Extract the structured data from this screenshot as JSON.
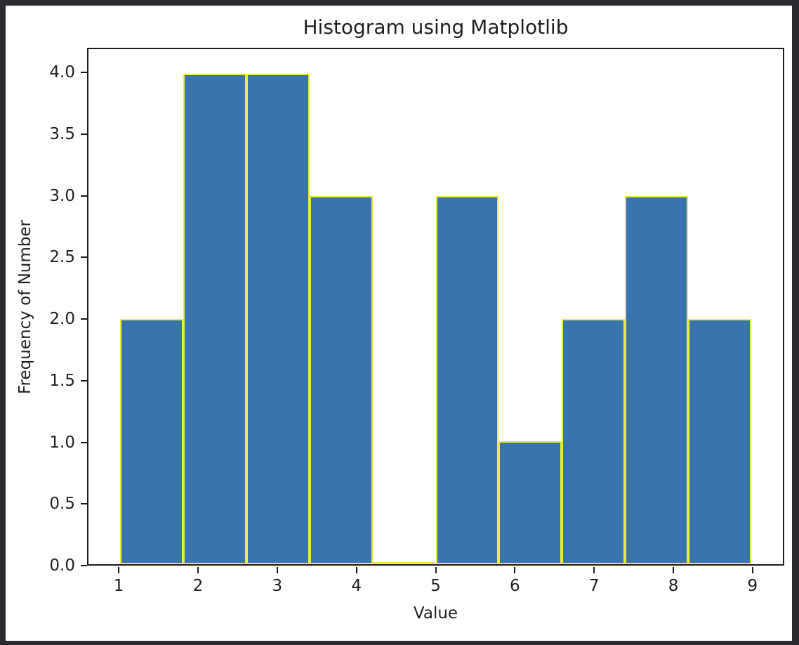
{
  "window": {
    "frame_background": "#2b2b31",
    "figure_background": "#ffffff"
  },
  "chart_data": {
    "type": "bar",
    "subtype": "histogram",
    "title": "Histogram using Matplotlib",
    "xlabel": "Value",
    "ylabel": "Frequency of Number",
    "bin_edges": [
      1.0,
      1.8,
      2.6,
      3.4,
      4.2,
      5.0,
      5.8,
      6.6,
      7.4,
      8.2,
      9.0
    ],
    "values": [
      2,
      4,
      4,
      3,
      0,
      3,
      1,
      2,
      3,
      2
    ],
    "xlim": [
      0.6,
      9.4
    ],
    "ylim": [
      0,
      4.2
    ],
    "x_ticks": [
      1,
      2,
      3,
      4,
      5,
      6,
      7,
      8,
      9
    ],
    "x_tick_labels": [
      "1",
      "2",
      "3",
      "4",
      "5",
      "6",
      "7",
      "8",
      "9"
    ],
    "y_ticks": [
      0,
      0.5,
      1,
      1.5,
      2,
      2.5,
      3,
      3.5,
      4
    ],
    "y_tick_labels": [
      "0.0",
      "0.5",
      "1.0",
      "1.5",
      "2.0",
      "2.5",
      "3.0",
      "3.5",
      "4.0"
    ],
    "grid": false,
    "legend": null,
    "colors": {
      "bar_fill": "#3a74ad",
      "bar_edge": "#ebeb3d",
      "spine": "#1b1b1b",
      "text": "#1f1f1f"
    }
  }
}
